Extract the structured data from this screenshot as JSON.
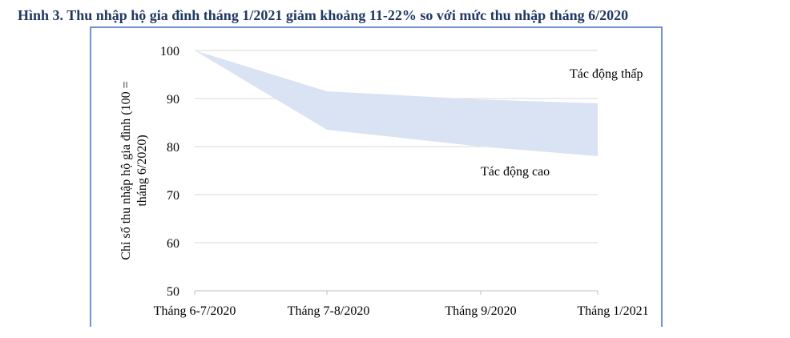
{
  "figure_title": "Hình 3. Thu nhập hộ gia đình tháng 1/2021 giảm khoảng 11-22% so với mức thu nhập tháng 6/2020",
  "chart_data": {
    "type": "area",
    "title": "Hình 3. Thu nhập hộ gia đình tháng 1/2021 giảm khoảng 11-22% so với mức thu nhập tháng 6/2020",
    "ylabel_lines": [
      "Chỉ số thu nhập hộ gia đình (100 =",
      "tháng 6/2020)"
    ],
    "xlabel": "",
    "categories": [
      "Tháng 6-7/2020",
      "Tháng 7-8/2020",
      "Tháng 9/2020",
      "Tháng 1/2021"
    ],
    "ylim": [
      50,
      100
    ],
    "yticks": [
      50,
      60,
      70,
      80,
      90,
      100
    ],
    "grid": true,
    "series": [
      {
        "name": "Tác động thấp",
        "values": [
          100,
          91.5,
          89.8,
          89.0
        ]
      },
      {
        "name": "Tác động cao",
        "values": [
          100,
          83.5,
          80.0,
          78.0
        ]
      }
    ],
    "band_color": "#dae3f3",
    "frame_color": "#4472c4",
    "grid_color": "#d9d9d9"
  }
}
